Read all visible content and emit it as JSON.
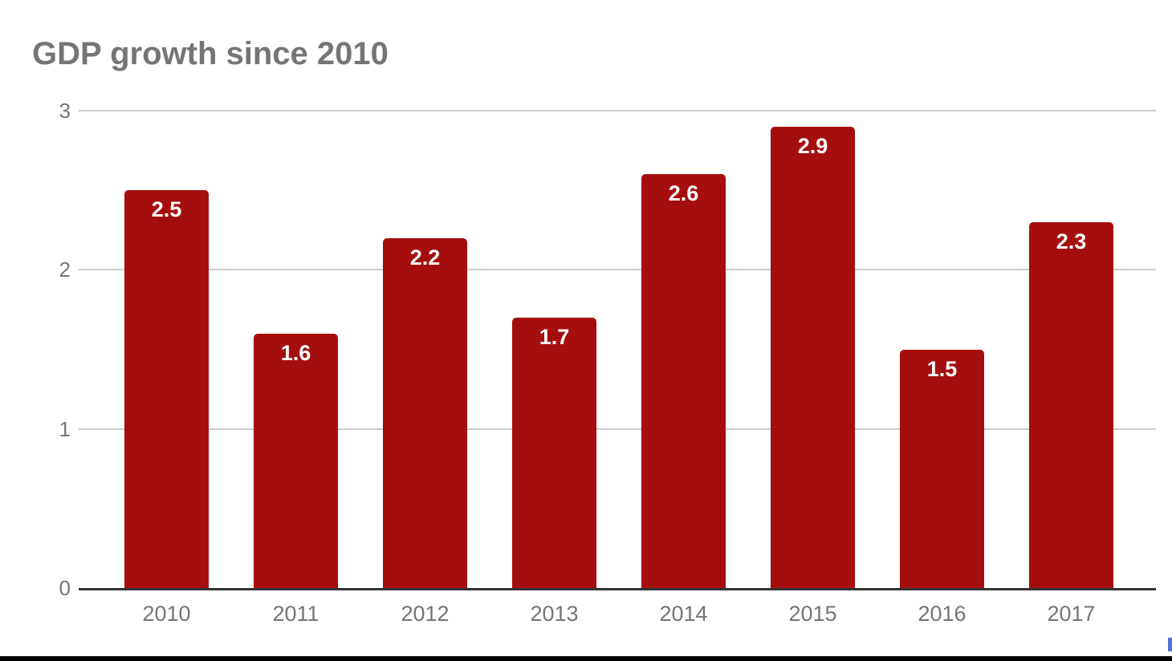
{
  "page": {
    "background": "#ffffff"
  },
  "chart_data": {
    "type": "bar",
    "title": "GDP growth since 2010",
    "categories": [
      "2010",
      "2011",
      "2012",
      "2013",
      "2014",
      "2015",
      "2016",
      "2017"
    ],
    "values": [
      2.5,
      1.6,
      2.2,
      1.7,
      2.6,
      2.9,
      1.5,
      2.3
    ],
    "xlabel": "",
    "ylabel": "",
    "ylim": [
      0,
      3
    ],
    "yticks": [
      0,
      1,
      2,
      3
    ],
    "gridlines": true,
    "legend": "none",
    "value_labels_position": "inside-top"
  },
  "colors": {
    "bar": "#a50e0e",
    "grid_line": "#cccccc",
    "axis_line": "#333333",
    "title_text": "#757575",
    "tick_text": "#757575",
    "value_label_text": "#ffffff",
    "bottom_strip": "#000000",
    "corner_artifact": "#5472d3"
  }
}
